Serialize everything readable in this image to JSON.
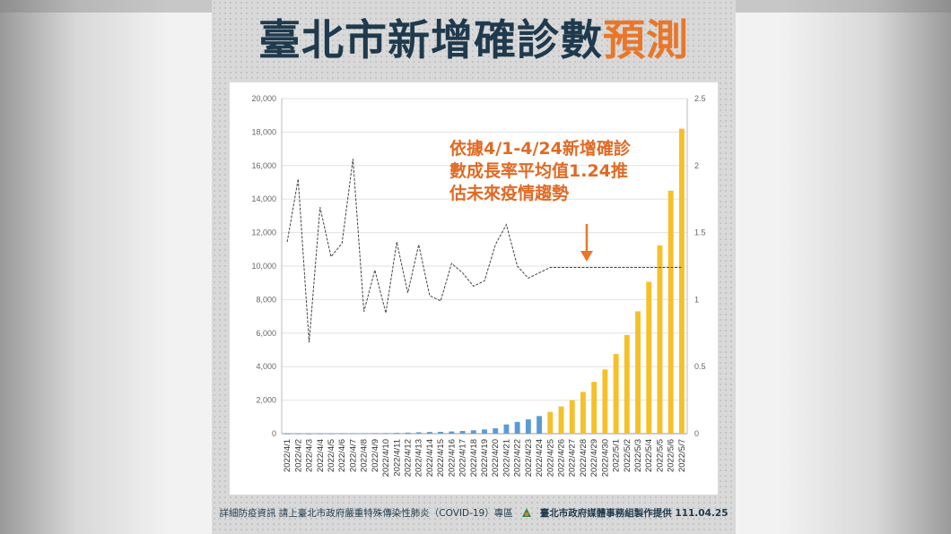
{
  "title": {
    "main": "臺北市新增確診數",
    "accent": "預測"
  },
  "annotation": [
    "依據4/1-4/24新增確診",
    "數成長率平均值1.24推",
    "估未來疫情趨勢"
  ],
  "footer": {
    "left": "詳細防疫資訊  請上臺北市政府嚴重特殊傳染性肺炎（COVID-19）專區",
    "right": "臺北市政府媒體事務組製作提供  111.04.25"
  },
  "colors": {
    "actual": "#5b9bd5",
    "forecast": "#f5c028",
    "accent": "#e8772a",
    "title": "#1f3a4d"
  },
  "chart_data": {
    "type": "bar",
    "categories": [
      "2022/4/1",
      "2022/4/2",
      "2022/4/3",
      "2022/4/4",
      "2022/4/5",
      "2022/4/6",
      "2022/4/7",
      "2022/4/8",
      "2022/4/9",
      "2022/4/10",
      "2022/4/11",
      "2022/4/12",
      "2022/4/13",
      "2022/4/14",
      "2022/4/15",
      "2022/4/16",
      "2022/4/17",
      "2022/4/18",
      "2022/4/19",
      "2022/4/20",
      "2022/4/21",
      "2022/4/22",
      "2022/4/23",
      "2022/4/24",
      "2022/4/25",
      "2022/4/26",
      "2022/4/27",
      "2022/4/28",
      "2022/4/29",
      "2022/4/30",
      "2022/5/1",
      "2022/5/2",
      "2022/5/3",
      "2022/5/4",
      "2022/5/5",
      "2022/5/6",
      "2022/5/7"
    ],
    "series": [
      {
        "kind": "bar",
        "color": "#5b9bd5",
        "values": [
          5,
          8,
          6,
          10,
          12,
          15,
          20,
          22,
          30,
          35,
          45,
          60,
          80,
          100,
          110,
          130,
          160,
          200,
          250,
          320,
          550,
          700,
          850,
          1050,
          null,
          null,
          null,
          null,
          null,
          null,
          null,
          null,
          null,
          null,
          null,
          null,
          null
        ]
      },
      {
        "kind": "bar",
        "color": "#f5c028",
        "values": [
          null,
          null,
          null,
          null,
          null,
          null,
          null,
          null,
          null,
          null,
          null,
          null,
          null,
          null,
          null,
          null,
          null,
          null,
          null,
          null,
          null,
          null,
          null,
          null,
          1300,
          1620,
          2000,
          2490,
          3090,
          3830,
          4750,
          5890,
          7300,
          9060,
          11230,
          14500,
          18200
        ]
      },
      {
        "kind": "line",
        "axis": "right",
        "color": "#444444",
        "values": [
          1.43,
          1.9,
          0.68,
          1.69,
          1.32,
          1.42,
          2.05,
          0.91,
          1.22,
          0.9,
          1.43,
          1.05,
          1.41,
          1.03,
          0.99,
          1.27,
          1.2,
          1.1,
          1.14,
          1.41,
          1.56,
          1.25,
          1.16,
          1.2,
          1.24,
          1.24,
          1.24,
          1.24,
          1.24,
          1.24,
          1.24,
          1.24,
          1.24,
          1.24,
          1.24,
          1.24,
          1.24
        ]
      }
    ],
    "yticks_left": [
      "0",
      "2,000",
      "4,000",
      "6,000",
      "8,000",
      "10,000",
      "12,000",
      "14,000",
      "16,000",
      "18,000",
      "20,000"
    ],
    "yticks_right": [
      "0",
      "0.5",
      "1",
      "1.5",
      "2",
      "2.5"
    ],
    "ylim": [
      0,
      20000
    ],
    "ylim_right": [
      0,
      2.5
    ]
  }
}
